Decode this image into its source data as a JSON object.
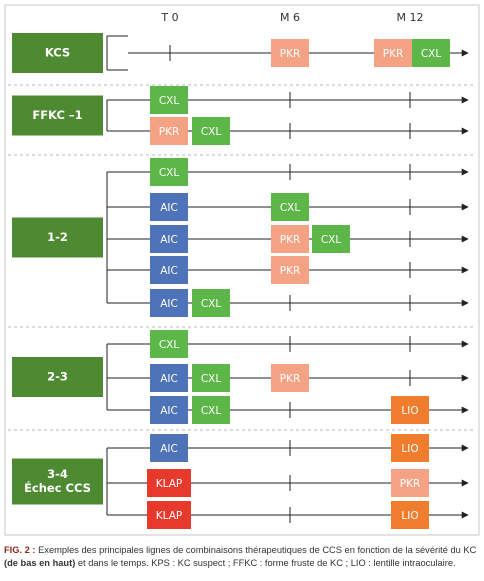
{
  "columns": [
    "T 0",
    "M 6",
    "M 12"
  ],
  "colors": {
    "CXL": "#5cb648",
    "PKR": "#f4a284",
    "AIC": "#4f73b8",
    "KLAP": "#e83a2c",
    "LIO": "#f07c2e"
  },
  "groups": [
    {
      "lines": [
        "KCS"
      ],
      "rows": [
        [
          "PKR",
          "PKR",
          "CXL"
        ]
      ]
    },
    {
      "lines": [
        "FFKC –1"
      ],
      "rows": [
        [
          "CXL"
        ],
        [
          "PKR",
          "CXL"
        ]
      ]
    },
    {
      "lines": [
        "1-2"
      ],
      "rows": [
        [
          "CXL"
        ],
        [
          "AIC",
          "CXL"
        ],
        [
          "AIC",
          "PKR",
          "CXL"
        ],
        [
          "AIC",
          "PKR"
        ],
        [
          "AIC",
          "CXL"
        ]
      ]
    },
    {
      "lines": [
        "2-3"
      ],
      "rows": [
        [
          "CXL"
        ],
        [
          "AIC",
          "CXL",
          "PKR"
        ],
        [
          "AIC",
          "CXL",
          "LIO"
        ]
      ]
    },
    {
      "lines": [
        "3-4",
        "Échec CCS"
      ],
      "rows": [
        [
          "AIC",
          "LIO"
        ],
        [
          "KLAP",
          "PKR"
        ],
        [
          "KLAP",
          "LIO"
        ]
      ]
    }
  ],
  "caption": {
    "label": "FIG. 2 :",
    "before": " Exemples des principales lignes de combinaisons thérapeutiques de CCS en fonction de la sévérité du KC ",
    "bold": "(de bas en haut)",
    "after": " et dans le temps. KPS : KC suspect ; FFKC : forme fruste de KC ; LIO : lentille intraoculaire."
  }
}
